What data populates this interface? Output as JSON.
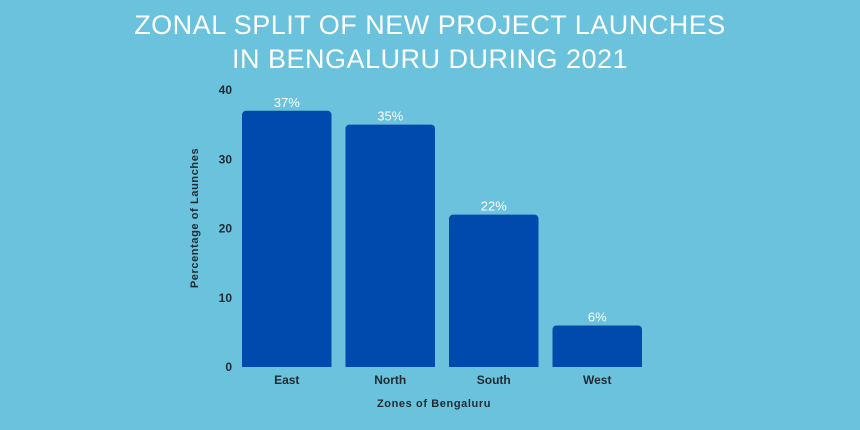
{
  "chart_data": {
    "type": "bar",
    "title_lines": [
      "ZONAL SPLIT OF NEW PROJECT LAUNCHES",
      "IN BENGALURU DURING 2021"
    ],
    "categories": [
      "East",
      "North",
      "South",
      "West"
    ],
    "values": [
      37,
      35,
      22,
      6
    ],
    "data_labels": [
      "37%",
      "35%",
      "22%",
      "6%"
    ],
    "xlabel": "Zones of Bengaluru",
    "ylabel": "Percentage of Launches",
    "ylim": [
      0,
      40
    ],
    "yticks": [
      0,
      10,
      20,
      30,
      40
    ],
    "grid": false,
    "legend": "none",
    "colors": {
      "bar": "#004aad",
      "background": "#6ac2dc",
      "title": "#ffffff",
      "label_text": "#1f2a33"
    }
  }
}
